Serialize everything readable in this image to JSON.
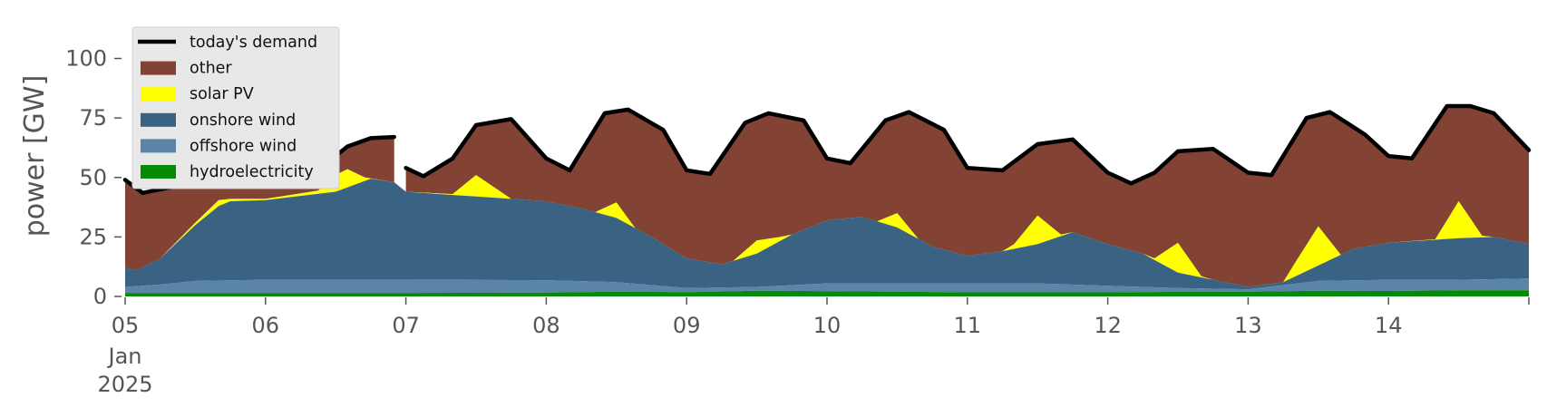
{
  "chart_data": {
    "type": "area",
    "ylabel": "power [GW]",
    "ylim": [
      0,
      120
    ],
    "yticks": [
      0,
      25,
      50,
      75,
      100
    ],
    "xlim": [
      "2025-01-05T00:00",
      "2025-01-15T00:00"
    ],
    "x_tick_labels": [
      "05",
      "06",
      "07",
      "08",
      "09",
      "10",
      "11",
      "12",
      "13",
      "14"
    ],
    "x_sublabel": [
      "Jan",
      "2025"
    ],
    "grid": false,
    "legend_position": "top-left",
    "legend": [
      "today's demand",
      "other",
      "solar PV",
      "onshore wind",
      "offshore wind",
      "hydroelectricity"
    ],
    "stack_order": [
      "hydroelectricity",
      "offshore wind",
      "onshore wind",
      "solar PV",
      "other"
    ],
    "colors": {
      "today's demand": "#000000",
      "other": "#824234",
      "solar PV": "#ffff00",
      "onshore wind": "#3a6283",
      "offshore wind": "#5a84a8",
      "hydroelectricity": "#058a05"
    },
    "series_cumulative_top_gw": {
      "hydroelectricity": [
        [
          "2025-01-05T00:00",
          1.5
        ],
        [
          "2025-01-06T00:00",
          1.5
        ],
        [
          "2025-01-07T00:00",
          1.5
        ],
        [
          "2025-01-08T00:00",
          1.6
        ],
        [
          "2025-01-08T12:00",
          2.0
        ],
        [
          "2025-01-09T00:00",
          1.8
        ],
        [
          "2025-01-09T12:00",
          2.4
        ],
        [
          "2025-01-10T00:00",
          2.2
        ],
        [
          "2025-01-10T12:00",
          2.0
        ],
        [
          "2025-01-11T00:00",
          1.7
        ],
        [
          "2025-01-12T00:00",
          1.7
        ],
        [
          "2025-01-12T12:00",
          1.9
        ],
        [
          "2025-01-13T00:00",
          2.0
        ],
        [
          "2025-01-13T12:00",
          2.4
        ],
        [
          "2025-01-14T00:00",
          2.3
        ],
        [
          "2025-01-14T12:00",
          2.6
        ],
        [
          "2025-01-15T00:00",
          2.6
        ]
      ],
      "offshore wind": [
        [
          "2025-01-05T00:00",
          4.0
        ],
        [
          "2025-01-05T06:00",
          5.0
        ],
        [
          "2025-01-05T12:00",
          6.5
        ],
        [
          "2025-01-06T00:00",
          7.0
        ],
        [
          "2025-01-07T00:00",
          7.0
        ],
        [
          "2025-01-08T00:00",
          6.8
        ],
        [
          "2025-01-08T12:00",
          6.0
        ],
        [
          "2025-01-09T00:00",
          3.5
        ],
        [
          "2025-01-09T12:00",
          4.0
        ],
        [
          "2025-01-10T00:00",
          5.5
        ],
        [
          "2025-01-10T12:00",
          5.5
        ],
        [
          "2025-01-11T00:00",
          5.5
        ],
        [
          "2025-01-11T12:00",
          5.5
        ],
        [
          "2025-01-12T00:00",
          4.5
        ],
        [
          "2025-01-12T12:00",
          3.5
        ],
        [
          "2025-01-13T00:00",
          3.0
        ],
        [
          "2025-01-13T12:00",
          6.5
        ],
        [
          "2025-01-14T00:00",
          7.0
        ],
        [
          "2025-01-14T12:00",
          7.0
        ],
        [
          "2025-01-15T00:00",
          7.5
        ]
      ],
      "onshore wind": [
        [
          "2025-01-05T00:00",
          12.0
        ],
        [
          "2025-01-05T02:00",
          11.0
        ],
        [
          "2025-01-05T06:00",
          16.0
        ],
        [
          "2025-01-05T12:00",
          30.0
        ],
        [
          "2025-01-05T16:00",
          38.0
        ],
        [
          "2025-01-05T18:00",
          40.0
        ],
        [
          "2025-01-06T00:00",
          40.5
        ],
        [
          "2025-01-06T12:00",
          44.0
        ],
        [
          "2025-01-06T18:00",
          49.5
        ],
        [
          "2025-01-06T22:00",
          48.0
        ],
        [
          "2025-01-07T00:00",
          44.0
        ],
        [
          "2025-01-07T12:00",
          42.0
        ],
        [
          "2025-01-07T18:00",
          41.0
        ],
        [
          "2025-01-08T00:00",
          40.0
        ],
        [
          "2025-01-08T06:00",
          37.0
        ],
        [
          "2025-01-08T12:00",
          33.0
        ],
        [
          "2025-01-08T18:00",
          25.0
        ],
        [
          "2025-01-09T00:00",
          16.0
        ],
        [
          "2025-01-09T06:00",
          13.5
        ],
        [
          "2025-01-09T12:00",
          18.0
        ],
        [
          "2025-01-09T18:00",
          26.0
        ],
        [
          "2025-01-10T00:00",
          32.0
        ],
        [
          "2025-01-10T06:00",
          33.5
        ],
        [
          "2025-01-10T12:00",
          29.0
        ],
        [
          "2025-01-10T18:00",
          21.0
        ],
        [
          "2025-01-11T00:00",
          17.0
        ],
        [
          "2025-01-11T06:00",
          19.0
        ],
        [
          "2025-01-11T12:00",
          22.0
        ],
        [
          "2025-01-11T18:00",
          27.0
        ],
        [
          "2025-01-12T00:00",
          22.0
        ],
        [
          "2025-01-12T06:00",
          18.0
        ],
        [
          "2025-01-12T12:00",
          10.0
        ],
        [
          "2025-01-12T18:00",
          7.0
        ],
        [
          "2025-01-13T00:00",
          4.0
        ],
        [
          "2025-01-13T06:00",
          6.0
        ],
        [
          "2025-01-13T12:00",
          13.0
        ],
        [
          "2025-01-13T18:00",
          20.0
        ],
        [
          "2025-01-14T00:00",
          22.5
        ],
        [
          "2025-01-14T12:00",
          24.5
        ],
        [
          "2025-01-14T18:00",
          25.0
        ],
        [
          "2025-01-15T00:00",
          22.0
        ]
      ],
      "solar PV": [
        [
          "2025-01-05T00:00",
          12.0
        ],
        [
          "2025-01-05T02:00",
          11.0
        ],
        [
          "2025-01-05T06:00",
          16.0
        ],
        [
          "2025-01-05T12:00",
          31.0
        ],
        [
          "2025-01-05T16:00",
          40.5
        ],
        [
          "2025-01-05T18:00",
          41.0
        ],
        [
          "2025-01-06T00:00",
          41.0
        ],
        [
          "2025-01-06T09:00",
          44.5
        ],
        [
          "2025-01-06T12:00",
          51.0
        ],
        [
          "2025-01-06T14:00",
          53.5
        ],
        [
          "2025-01-06T17:00",
          50.0
        ],
        [
          "2025-01-06T22:00",
          48.0
        ],
        [
          "2025-01-07T00:00",
          44.0
        ],
        [
          "2025-01-07T08:00",
          43.0
        ],
        [
          "2025-01-07T12:00",
          51.0
        ],
        [
          "2025-01-07T15:00",
          46.0
        ],
        [
          "2025-01-07T18:00",
          41.0
        ],
        [
          "2025-01-08T00:00",
          40.0
        ],
        [
          "2025-01-08T08:00",
          35.0
        ],
        [
          "2025-01-08T12:00",
          39.5
        ],
        [
          "2025-01-08T16:00",
          26.0
        ],
        [
          "2025-01-08T18:00",
          25.0
        ],
        [
          "2025-01-09T00:00",
          16.0
        ],
        [
          "2025-01-09T06:00",
          13.5
        ],
        [
          "2025-01-09T08:00",
          15.0
        ],
        [
          "2025-01-09T12:00",
          23.5
        ],
        [
          "2025-01-09T16:00",
          25.0
        ],
        [
          "2025-01-09T18:00",
          26.0
        ],
        [
          "2025-01-10T00:00",
          32.0
        ],
        [
          "2025-01-10T06:00",
          33.5
        ],
        [
          "2025-01-10T08:00",
          31.0
        ],
        [
          "2025-01-10T12:00",
          35.0
        ],
        [
          "2025-01-10T16:00",
          23.0
        ],
        [
          "2025-01-10T18:00",
          21.0
        ],
        [
          "2025-01-11T00:00",
          17.0
        ],
        [
          "2025-01-11T06:00",
          19.0
        ],
        [
          "2025-01-11T08:00",
          22.0
        ],
        [
          "2025-01-11T12:00",
          34.0
        ],
        [
          "2025-01-11T16:00",
          26.0
        ],
        [
          "2025-01-11T18:00",
          27.0
        ],
        [
          "2025-01-12T00:00",
          22.0
        ],
        [
          "2025-01-12T06:00",
          18.0
        ],
        [
          "2025-01-12T08:00",
          16.0
        ],
        [
          "2025-01-12T12:00",
          22.5
        ],
        [
          "2025-01-12T16:00",
          8.5
        ],
        [
          "2025-01-12T18:00",
          7.0
        ],
        [
          "2025-01-13T00:00",
          4.0
        ],
        [
          "2025-01-13T06:00",
          6.0
        ],
        [
          "2025-01-13T08:00",
          14.0
        ],
        [
          "2025-01-13T12:00",
          29.5
        ],
        [
          "2025-01-13T16:00",
          17.0
        ],
        [
          "2025-01-13T18:00",
          20.0
        ],
        [
          "2025-01-14T00:00",
          22.5
        ],
        [
          "2025-01-14T08:00",
          24.0
        ],
        [
          "2025-01-14T12:00",
          40.0
        ],
        [
          "2025-01-14T16:00",
          25.5
        ],
        [
          "2025-01-14T18:00",
          25.0
        ],
        [
          "2025-01-15T00:00",
          22.0
        ]
      ],
      "other (= today's demand)": [
        [
          "2025-01-05T00:00",
          49
        ],
        [
          "2025-01-05T03:00",
          43.5
        ],
        [
          "2025-01-05T08:00",
          46
        ],
        [
          "2025-01-05T14:00",
          60.5
        ],
        [
          "2025-01-05T16:00",
          56
        ],
        [
          "2025-01-05T18:00",
          61
        ],
        [
          "2025-01-05T21:00",
          56.5
        ],
        [
          "2025-01-06T00:00",
          49.5
        ],
        [
          "2025-01-06T04:00",
          46
        ],
        [
          "2025-01-06T10:00",
          55
        ],
        [
          "2025-01-06T14:00",
          63
        ],
        [
          "2025-01-06T18:00",
          66.5
        ],
        [
          "2025-01-06T22:00",
          67
        ]
      ],
      "other (= today's demand), after gap": [
        [
          "2025-01-07T00:00",
          54
        ],
        [
          "2025-01-07T03:00",
          50.5
        ],
        [
          "2025-01-07T08:00",
          58
        ],
        [
          "2025-01-07T12:00",
          72
        ],
        [
          "2025-01-07T18:00",
          74.5
        ],
        [
          "2025-01-08T00:00",
          58
        ],
        [
          "2025-01-08T04:00",
          53
        ],
        [
          "2025-01-08T10:00",
          77
        ],
        [
          "2025-01-08T14:00",
          78.5
        ],
        [
          "2025-01-08T20:00",
          70
        ],
        [
          "2025-01-09T00:00",
          53
        ],
        [
          "2025-01-09T04:00",
          51.5
        ],
        [
          "2025-01-09T10:00",
          73
        ],
        [
          "2025-01-09T14:00",
          77
        ],
        [
          "2025-01-09T20:00",
          74
        ],
        [
          "2025-01-10T00:00",
          58
        ],
        [
          "2025-01-10T04:00",
          56
        ],
        [
          "2025-01-10T10:00",
          74
        ],
        [
          "2025-01-10T14:00",
          77.5
        ],
        [
          "2025-01-10T20:00",
          70
        ],
        [
          "2025-01-11T00:00",
          54
        ],
        [
          "2025-01-11T06:00",
          53
        ],
        [
          "2025-01-11T12:00",
          64
        ],
        [
          "2025-01-11T18:00",
          66
        ],
        [
          "2025-01-12T00:00",
          52
        ],
        [
          "2025-01-12T04:00",
          47.5
        ],
        [
          "2025-01-12T08:00",
          52
        ],
        [
          "2025-01-12T12:00",
          61
        ],
        [
          "2025-01-12T18:00",
          62
        ],
        [
          "2025-01-13T00:00",
          52
        ],
        [
          "2025-01-13T04:00",
          51
        ],
        [
          "2025-01-13T10:00",
          75
        ],
        [
          "2025-01-13T14:00",
          77.5
        ],
        [
          "2025-01-13T20:00",
          68
        ],
        [
          "2025-01-14T00:00",
          59
        ],
        [
          "2025-01-14T04:00",
          58
        ],
        [
          "2025-01-14T10:00",
          80
        ],
        [
          "2025-01-14T14:00",
          80
        ],
        [
          "2025-01-14T18:00",
          77
        ],
        [
          "2025-01-15T00:00",
          61.5
        ]
      ]
    }
  }
}
